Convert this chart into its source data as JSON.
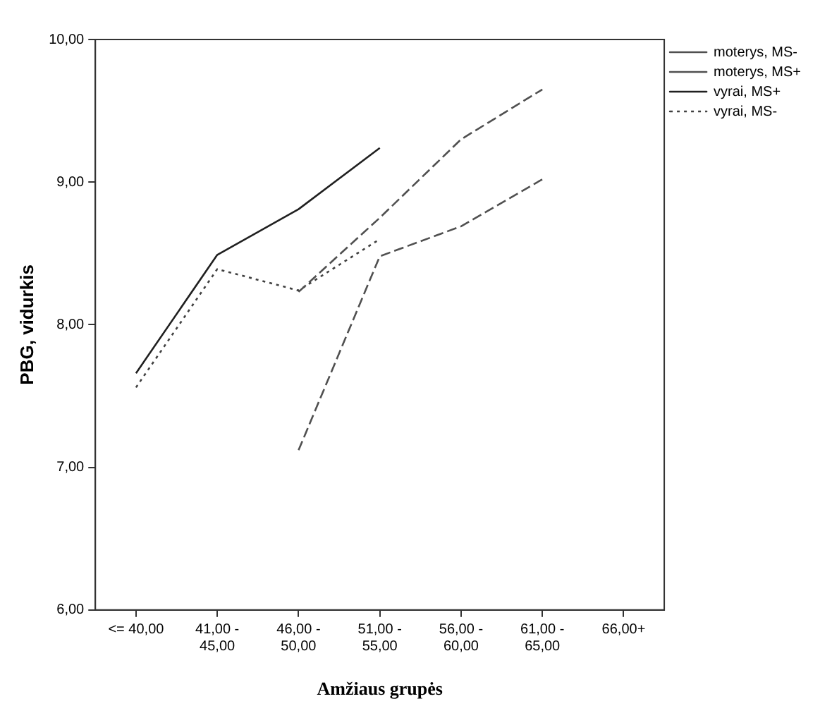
{
  "chart_data": {
    "type": "line",
    "xlabel": "Amžiaus grupės",
    "ylabel": "PBG, vidurkis",
    "categories": [
      "<= 40,00",
      "41,00 - 45,00",
      "46,00 - 50,00",
      "51,00 - 55,00",
      "56,00 - 60,00",
      "61,00 - 65,00",
      "66,00+"
    ],
    "series": [
      {
        "name": "moterys, MS-",
        "color": "#505050",
        "line_style": "dashed",
        "values": [
          null,
          null,
          7.12,
          8.48,
          8.69,
          9.02,
          null
        ]
      },
      {
        "name": "moterys, MS+",
        "color": "#505050",
        "line_style": "dashed",
        "values": [
          null,
          null,
          8.23,
          8.75,
          9.3,
          9.65,
          null
        ]
      },
      {
        "name": "vyrai, MS+",
        "color": "#202020",
        "line_style": "solid",
        "values": [
          7.66,
          8.49,
          8.81,
          9.24,
          null,
          null,
          null
        ]
      },
      {
        "name": "vyrai, MS-",
        "color": "#404040",
        "line_style": "dotted",
        "values": [
          7.56,
          8.39,
          8.24,
          8.6,
          null,
          null,
          null
        ]
      }
    ],
    "ylim": [
      6,
      10
    ],
    "yticks": [
      {
        "value": 6,
        "label": "6,00"
      },
      {
        "value": 7,
        "label": "7,00"
      },
      {
        "value": 8,
        "label": "8,00"
      },
      {
        "value": 9,
        "label": "9,00"
      },
      {
        "value": 10,
        "label": "10,00"
      }
    ],
    "grid": false,
    "legend": "top right",
    "marker": "none"
  }
}
